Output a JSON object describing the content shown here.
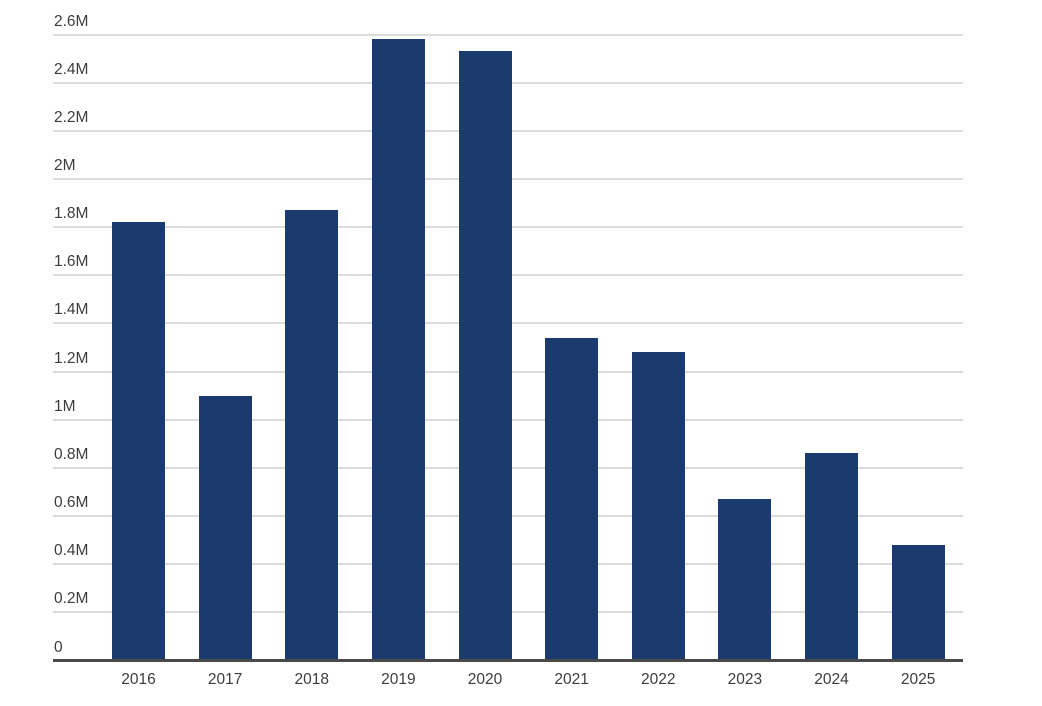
{
  "chart_data": {
    "type": "bar",
    "title": "",
    "xlabel": "",
    "ylabel": "",
    "categories": [
      "2016",
      "2017",
      "2018",
      "2019",
      "2020",
      "2021",
      "2022",
      "2023",
      "2024",
      "2025"
    ],
    "values": [
      1820000,
      1100000,
      1870000,
      2580000,
      2530000,
      1340000,
      1280000,
      670000,
      860000,
      480000
    ],
    "ylim": [
      0,
      2600000
    ],
    "y_tick_interval": 200000,
    "y_tick_labels": [
      "0",
      "0.2M",
      "0.4M",
      "0.6M",
      "0.8M",
      "1M",
      "1.2M",
      "1.4M",
      "1.6M",
      "1.8M",
      "2M",
      "2.2M",
      "2.4M",
      "2.6M"
    ],
    "grid": true,
    "legend": null,
    "colors": {
      "bar": "#1b3a6e",
      "gridline": "#dcdcdc",
      "axis_line": "#4a4a4a",
      "tick_text": "#3c3c3c",
      "background": "#ffffff"
    }
  }
}
